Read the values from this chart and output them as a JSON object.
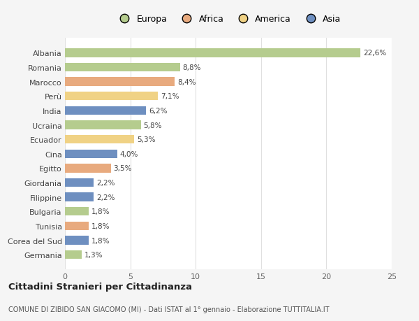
{
  "countries": [
    "Albania",
    "Romania",
    "Marocco",
    "Perù",
    "India",
    "Ucraina",
    "Ecuador",
    "Cina",
    "Egitto",
    "Giordania",
    "Filippine",
    "Bulgaria",
    "Tunisia",
    "Corea del Sud",
    "Germania"
  ],
  "values": [
    22.6,
    8.8,
    8.4,
    7.1,
    6.2,
    5.8,
    5.3,
    4.0,
    3.5,
    2.2,
    2.2,
    1.8,
    1.8,
    1.8,
    1.3
  ],
  "labels": [
    "22,6%",
    "8,8%",
    "8,4%",
    "7,1%",
    "6,2%",
    "5,8%",
    "5,3%",
    "4,0%",
    "3,5%",
    "2,2%",
    "2,2%",
    "1,8%",
    "1,8%",
    "1,8%",
    "1,3%"
  ],
  "colors": [
    "#b5cc8e",
    "#b5cc8e",
    "#e8aa7e",
    "#f0d285",
    "#6e8fc0",
    "#b5cc8e",
    "#f0d285",
    "#6e8fc0",
    "#e8aa7e",
    "#6e8fc0",
    "#6e8fc0",
    "#b5cc8e",
    "#e8aa7e",
    "#6e8fc0",
    "#b5cc8e"
  ],
  "legend_labels": [
    "Europa",
    "Africa",
    "America",
    "Asia"
  ],
  "legend_colors": [
    "#b5cc8e",
    "#e8aa7e",
    "#f0d285",
    "#6e8fc0"
  ],
  "title": "Cittadini Stranieri per Cittadinanza",
  "subtitle": "COMUNE DI ZIBIDO SAN GIACOMO (MI) - Dati ISTAT al 1° gennaio - Elaborazione TUTTITALIA.IT",
  "xlim": [
    0,
    25
  ],
  "xticks": [
    0,
    5,
    10,
    15,
    20,
    25
  ],
  "background_color": "#f5f5f5",
  "bar_background": "#ffffff",
  "grid_color": "#e0e0e0"
}
